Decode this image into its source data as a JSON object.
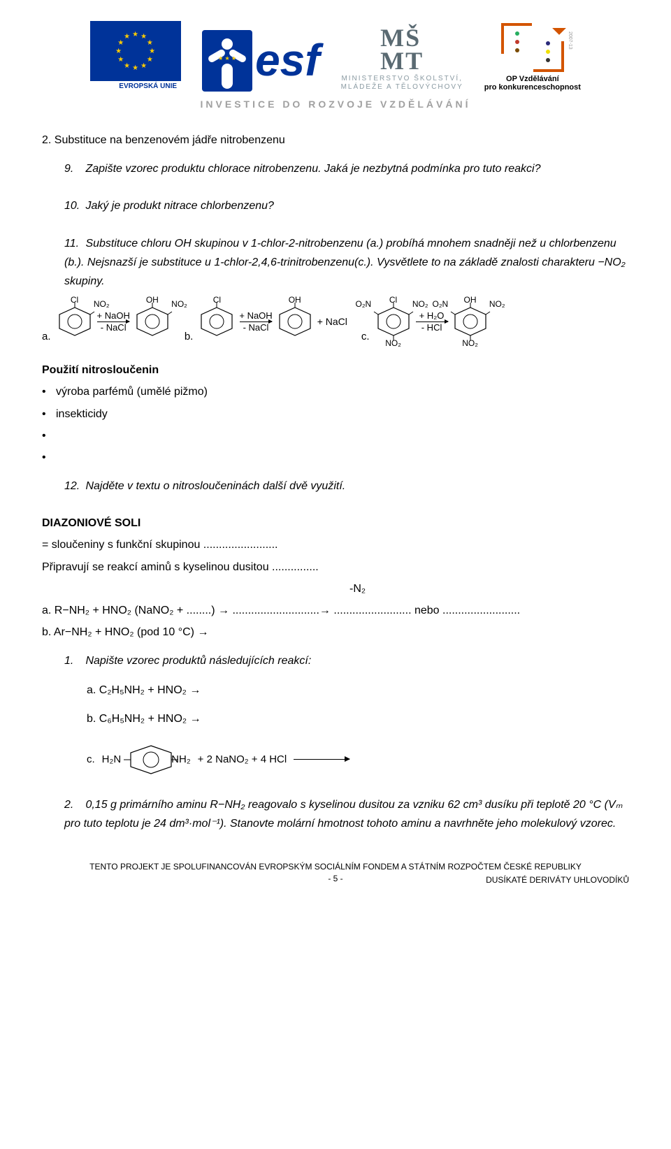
{
  "header": {
    "eu_label": "EVROPSKÁ UNIE",
    "esf_text": "esf",
    "msmt_line1": "MINISTERSTVO ŠKOLSTVÍ,",
    "msmt_line2": "MLÁDEŽE A TĚLOVÝCHOVY",
    "op_line1": "OP Vzdělávání",
    "op_line2": "pro konkurenceschopnost",
    "op_side": "2007-13",
    "tagline": "INVESTICE DO ROZVOJE VZDĚLÁVÁNÍ",
    "colors": {
      "eu_blue": "#003399",
      "eu_yellow": "#ffcc00",
      "op_orange": "#d35400",
      "grey_text": "#8a9aa2",
      "tagline_grey": "#a0a0a0"
    },
    "op_dot_colors_left": [
      "#27ae60",
      "#c0392b",
      "#7a4b00"
    ],
    "op_dot_colors_right": [
      "#2a2a7a",
      "#f0e000",
      "#333333"
    ]
  },
  "section2": {
    "title": "2. Substituce na benzenovém jádře nitrobenzenu",
    "q9": "Zapište vzorec produktu chlorace nitrobenzenu. Jaká je nezbytná podmínka pro tuto reakci?",
    "q10": "Jaký je produkt nitrace chlorbenzenu?",
    "q11": "Substituce chloru OH skupinou v 1-chlor-2-nitrobenzenu (a.) probíhá mnohem snadněji než u chlorbenzenu (b.). Nejsnazší je substituce u 1-chlor-2,4,6-trinitrobenzenu(c.). Vysvětlete to na základě znalosti charakteru  −NO₂ skupiny."
  },
  "reactions": {
    "a": {
      "letter": "a.",
      "left_top": "Cl",
      "left_ur": "NO₂",
      "arrow_top": "+ NaOH",
      "arrow_bot": "- NaCl",
      "right_top": "OH",
      "right_ur": "NO₂"
    },
    "b": {
      "letter": "b.",
      "left_top": "Cl",
      "arrow_top": "+ NaOH",
      "arrow_bot": "- NaCl",
      "right_top": "OH",
      "plus": "+ NaCl"
    },
    "c": {
      "letter": "c.",
      "left_top": "Cl",
      "left_ur": "NO₂",
      "left_ul": "O₂N",
      "left_bot": "NO₂",
      "arrow_top": "+ H₂O",
      "arrow_bot": "- HCl",
      "right_top": "OH",
      "right_ur": "NO₂",
      "right_ul": "O₂N",
      "right_bot": "NO₂"
    }
  },
  "uses": {
    "heading": "Použití nitrosloučenin",
    "items": [
      "výroba parfémů (umělé pižmo)",
      "insekticidy"
    ],
    "q12": "Najděte v textu o nitrosloučeninách další dvě využití."
  },
  "diazonium": {
    "heading": "DIAZONIOVÉ SOLI",
    "l1": "= sloučeniny s funkční skupinou ........................",
    "l2": "Připravují se reakcí aminů s kyselinou dusitou ...............",
    "minus_n2": "-N₂",
    "la": "a.   R−NH₂ + HNO₂ (NaNO₂ + ........) → ............................→ ......................... nebo .........................",
    "lb": "b.   Ar−NH₂ + HNO₂  (pod 10 °C) →",
    "q1": "Napište vzorec produktů následujících reakcí:",
    "q1a": "a.    C₂H₅NH₂ + HNO₂ →",
    "q1b": "b.    C₆H₅NH₂ + HNO₂ →"
  },
  "reaction_c_formula": {
    "letter": "c.",
    "left_sub_l": "H₂N",
    "left_sub_r": "NH₂",
    "tail": "+ 2 NaNO₂ + 4 HCl"
  },
  "q2": {
    "text": "0,15 g primárního aminu R−NH₂ reagovalo s kyselinou dusitou za vzniku 62 cm³ dusíku při teplotě 20 °C (Vₘ pro tuto teplotu je 24 dm³·mol⁻¹). Stanovte molární hmotnost tohoto aminu a navrhněte jeho molekulový vzorec."
  },
  "footer": {
    "line1": "TENTO PROJEKT JE SPOLUFINANCOVÁN EVROPSKÝM SOCIÁLNÍM FONDEM A STÁTNÍM ROZPOČTEM ČESKÉ REPUBLIKY",
    "page": "- 5 -",
    "doc": "DUSÍKATÉ DERIVÁTY UHLOVODÍKŮ"
  }
}
